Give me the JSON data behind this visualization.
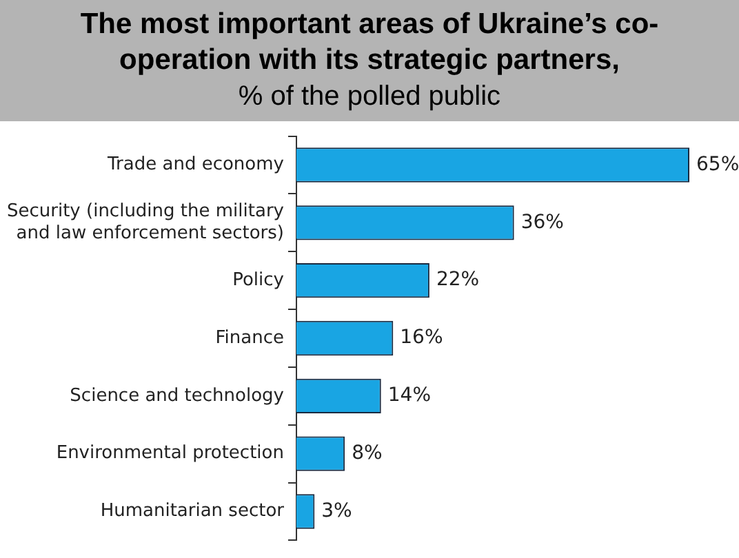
{
  "chart_data": {
    "type": "bar",
    "orientation": "horizontal",
    "title": "The most important areas of Ukraine’s co-operation with its strategic partners,",
    "subtitle": "% of the polled public",
    "categories": [
      "Trade and economy",
      "Security (including the military and law enforcement sectors)",
      "Policy",
      "Finance",
      "Science and technology",
      "Environmental protection",
      "Humanitarian sector"
    ],
    "values": [
      65,
      36,
      22,
      16,
      14,
      8,
      3
    ],
    "value_labels": [
      "65%",
      "36%",
      "22%",
      "16%",
      "14%",
      "8%",
      "3%"
    ],
    "color": "#19a5e3"
  }
}
